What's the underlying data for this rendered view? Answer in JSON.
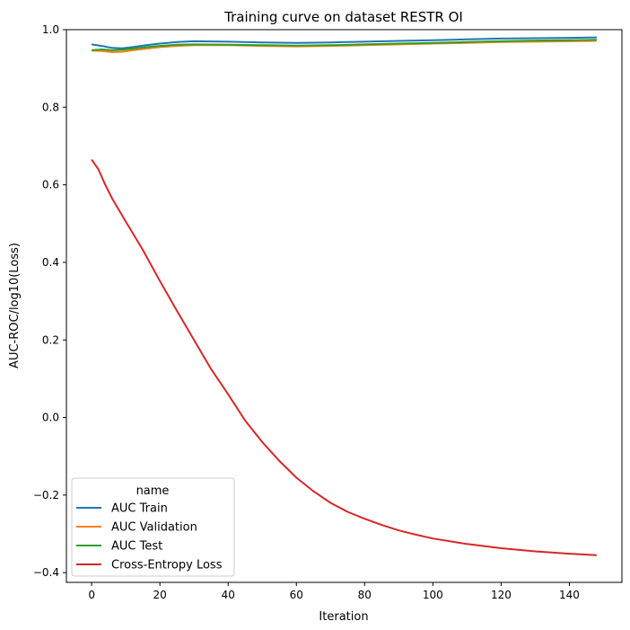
{
  "chart_data": {
    "type": "line",
    "title": "Training curve on dataset RESTR OI",
    "xlabel": "Iteration",
    "ylabel": "AUC-ROC/log10(Loss)",
    "xlim": [
      -7.4,
      155.4
    ],
    "ylim": [
      -0.425,
      1.0
    ],
    "xticks": [
      0,
      20,
      40,
      60,
      80,
      100,
      120,
      140
    ],
    "yticks": [
      -0.4,
      -0.2,
      0.0,
      0.2,
      0.4,
      0.6,
      0.8,
      1.0
    ],
    "xtick_labels": [
      "0",
      "20",
      "40",
      "60",
      "80",
      "100",
      "120",
      "140"
    ],
    "ytick_labels": [
      "−0.4",
      "−0.2",
      "0.0",
      "0.2",
      "0.4",
      "0.6",
      "0.8",
      "1.0"
    ],
    "grid": false,
    "legend": {
      "title": "name",
      "position": "lower-left",
      "entries": [
        "AUC Train",
        "AUC Validation",
        "AUC Test",
        "Cross-Entropy Loss"
      ]
    },
    "series": [
      {
        "name": "AUC Train",
        "color": "#1f77b4",
        "x": [
          0,
          3,
          6,
          9,
          12,
          16,
          20,
          25,
          30,
          40,
          50,
          60,
          70,
          80,
          90,
          100,
          110,
          120,
          130,
          140,
          148
        ],
        "y": [
          0.962,
          0.958,
          0.953,
          0.952,
          0.955,
          0.96,
          0.964,
          0.968,
          0.97,
          0.969,
          0.967,
          0.966,
          0.967,
          0.969,
          0.971,
          0.973,
          0.975,
          0.977,
          0.978,
          0.979,
          0.98
        ]
      },
      {
        "name": "AUC Validation",
        "color": "#ff7f0e",
        "x": [
          0,
          3,
          6,
          9,
          12,
          16,
          20,
          25,
          30,
          40,
          50,
          60,
          70,
          80,
          90,
          100,
          110,
          120,
          130,
          140,
          148
        ],
        "y": [
          0.946,
          0.945,
          0.942,
          0.943,
          0.947,
          0.951,
          0.955,
          0.958,
          0.96,
          0.96,
          0.958,
          0.957,
          0.958,
          0.96,
          0.962,
          0.964,
          0.966,
          0.968,
          0.969,
          0.97,
          0.971
        ]
      },
      {
        "name": "AUC Test",
        "color": "#2ca02c",
        "x": [
          0,
          3,
          6,
          9,
          12,
          16,
          20,
          25,
          30,
          40,
          50,
          60,
          70,
          80,
          90,
          100,
          110,
          120,
          130,
          140,
          148
        ],
        "y": [
          0.947,
          0.949,
          0.947,
          0.948,
          0.951,
          0.955,
          0.958,
          0.961,
          0.962,
          0.961,
          0.96,
          0.959,
          0.96,
          0.962,
          0.964,
          0.966,
          0.968,
          0.97,
          0.972,
          0.973,
          0.974
        ]
      },
      {
        "name": "Cross-Entropy Loss",
        "color": "#d62728",
        "x": [
          0,
          2,
          4,
          6,
          8,
          10,
          15,
          20,
          25,
          30,
          35,
          40,
          45,
          50,
          55,
          60,
          65,
          70,
          75,
          80,
          85,
          90,
          95,
          100,
          110,
          120,
          130,
          140,
          148
        ],
        "y": [
          0.665,
          0.64,
          0.6,
          0.565,
          0.535,
          0.505,
          0.432,
          0.352,
          0.275,
          0.2,
          0.125,
          0.06,
          -0.008,
          -0.063,
          -0.112,
          -0.155,
          -0.19,
          -0.22,
          -0.243,
          -0.261,
          -0.277,
          -0.291,
          -0.302,
          -0.312,
          -0.326,
          -0.337,
          -0.345,
          -0.351,
          -0.355
        ]
      }
    ]
  }
}
